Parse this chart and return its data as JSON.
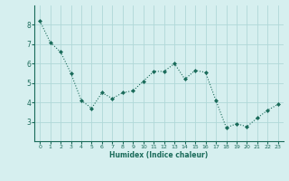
{
  "x": [
    0,
    1,
    2,
    3,
    4,
    5,
    6,
    7,
    8,
    9,
    10,
    11,
    12,
    13,
    14,
    15,
    16,
    17,
    18,
    19,
    20,
    21,
    22,
    23
  ],
  "y": [
    8.2,
    7.1,
    6.6,
    5.5,
    4.1,
    3.7,
    4.5,
    4.2,
    4.5,
    4.6,
    5.1,
    5.6,
    5.6,
    6.0,
    5.2,
    5.65,
    5.55,
    4.1,
    2.7,
    2.9,
    2.75,
    3.2,
    3.6,
    3.9
  ],
  "xlabel": "Humidex (Indice chaleur)",
  "ylim": [
    2.0,
    9.0
  ],
  "xlim": [
    -0.5,
    23.5
  ],
  "bg_color": "#d6efef",
  "grid_color": "#b0d8d8",
  "line_color": "#1a6b5a",
  "marker_color": "#1a6b5a",
  "yticks": [
    3,
    4,
    5,
    6,
    7,
    8
  ],
  "xticks": [
    0,
    1,
    2,
    3,
    4,
    5,
    6,
    7,
    8,
    9,
    10,
    11,
    12,
    13,
    14,
    15,
    16,
    17,
    18,
    19,
    20,
    21,
    22,
    23
  ]
}
